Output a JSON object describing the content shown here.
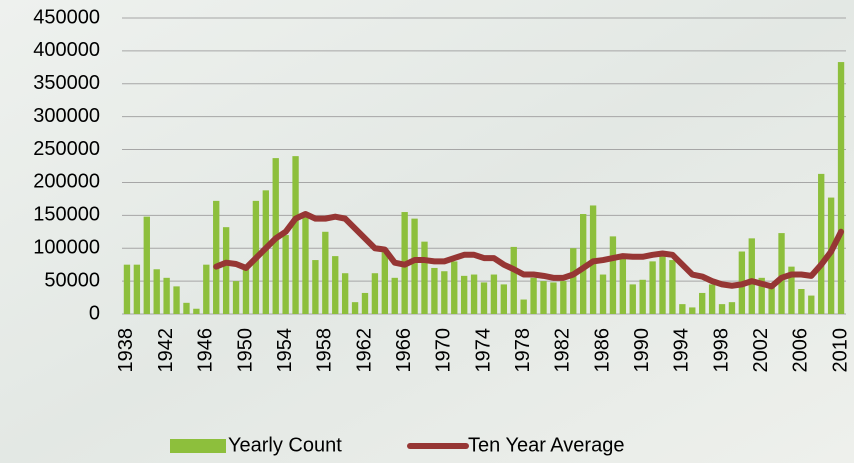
{
  "chart_data": {
    "type": "bar-line",
    "categories": [
      "1938",
      null,
      null,
      null,
      "1942",
      null,
      null,
      null,
      "1946",
      null,
      null,
      null,
      "1950",
      null,
      null,
      null,
      "1954",
      null,
      null,
      null,
      "1958",
      null,
      null,
      null,
      "1962",
      null,
      null,
      null,
      "1966",
      null,
      null,
      null,
      "1970",
      null,
      null,
      null,
      "1974",
      null,
      null,
      null,
      "1978",
      null,
      null,
      null,
      "1982",
      null,
      null,
      null,
      "1986",
      null,
      null,
      null,
      "1990",
      null,
      null,
      null,
      "1994",
      null,
      null,
      null,
      "1998",
      null,
      null,
      null,
      "2002",
      null,
      null,
      null,
      "2006",
      null,
      null,
      null,
      "2010"
    ],
    "series": [
      {
        "name": "Yearly Count",
        "type": "bar",
        "color": "#8dbf3c",
        "values": [
          75000,
          75000,
          148000,
          68000,
          55000,
          42000,
          17000,
          8000,
          75000,
          172000,
          132000,
          50000,
          75000,
          172000,
          188000,
          237000,
          120000,
          240000,
          150000,
          82000,
          125000,
          88000,
          62000,
          18000,
          32000,
          62000,
          95000,
          55000,
          155000,
          145000,
          110000,
          70000,
          65000,
          80000,
          58000,
          60000,
          48000,
          60000,
          45000,
          102000,
          22000,
          55000,
          50000,
          48000,
          50000,
          100000,
          152000,
          165000,
          60000,
          118000,
          85000,
          45000,
          52000,
          80000,
          88000,
          82000,
          15000,
          10000,
          32000,
          45000,
          15000,
          18000,
          95000,
          115000,
          55000,
          42000,
          123000,
          72000,
          38000,
          28000,
          213000,
          177000,
          383000
        ]
      },
      {
        "name": "Ten Year Average",
        "type": "line",
        "color": "#963634",
        "values": [
          null,
          null,
          null,
          null,
          null,
          null,
          null,
          null,
          null,
          72000,
          78000,
          76000,
          70000,
          85000,
          100000,
          115000,
          125000,
          145000,
          152000,
          145000,
          145000,
          148000,
          145000,
          130000,
          115000,
          100000,
          98000,
          78000,
          75000,
          82000,
          82000,
          80000,
          80000,
          85000,
          90000,
          90000,
          85000,
          85000,
          75000,
          68000,
          60000,
          60000,
          58000,
          55000,
          55000,
          60000,
          70000,
          80000,
          82000,
          85000,
          88000,
          87000,
          87000,
          90000,
          92000,
          90000,
          75000,
          60000,
          57000,
          50000,
          45000,
          43000,
          45000,
          50000,
          46000,
          42000,
          55000,
          60000,
          60000,
          58000,
          75000,
          95000,
          125000
        ]
      }
    ],
    "ylim": [
      0,
      450000
    ],
    "yticks": [
      0,
      50000,
      100000,
      150000,
      200000,
      250000,
      300000,
      350000,
      400000,
      450000
    ],
    "grid": true,
    "legend": "bottom"
  }
}
